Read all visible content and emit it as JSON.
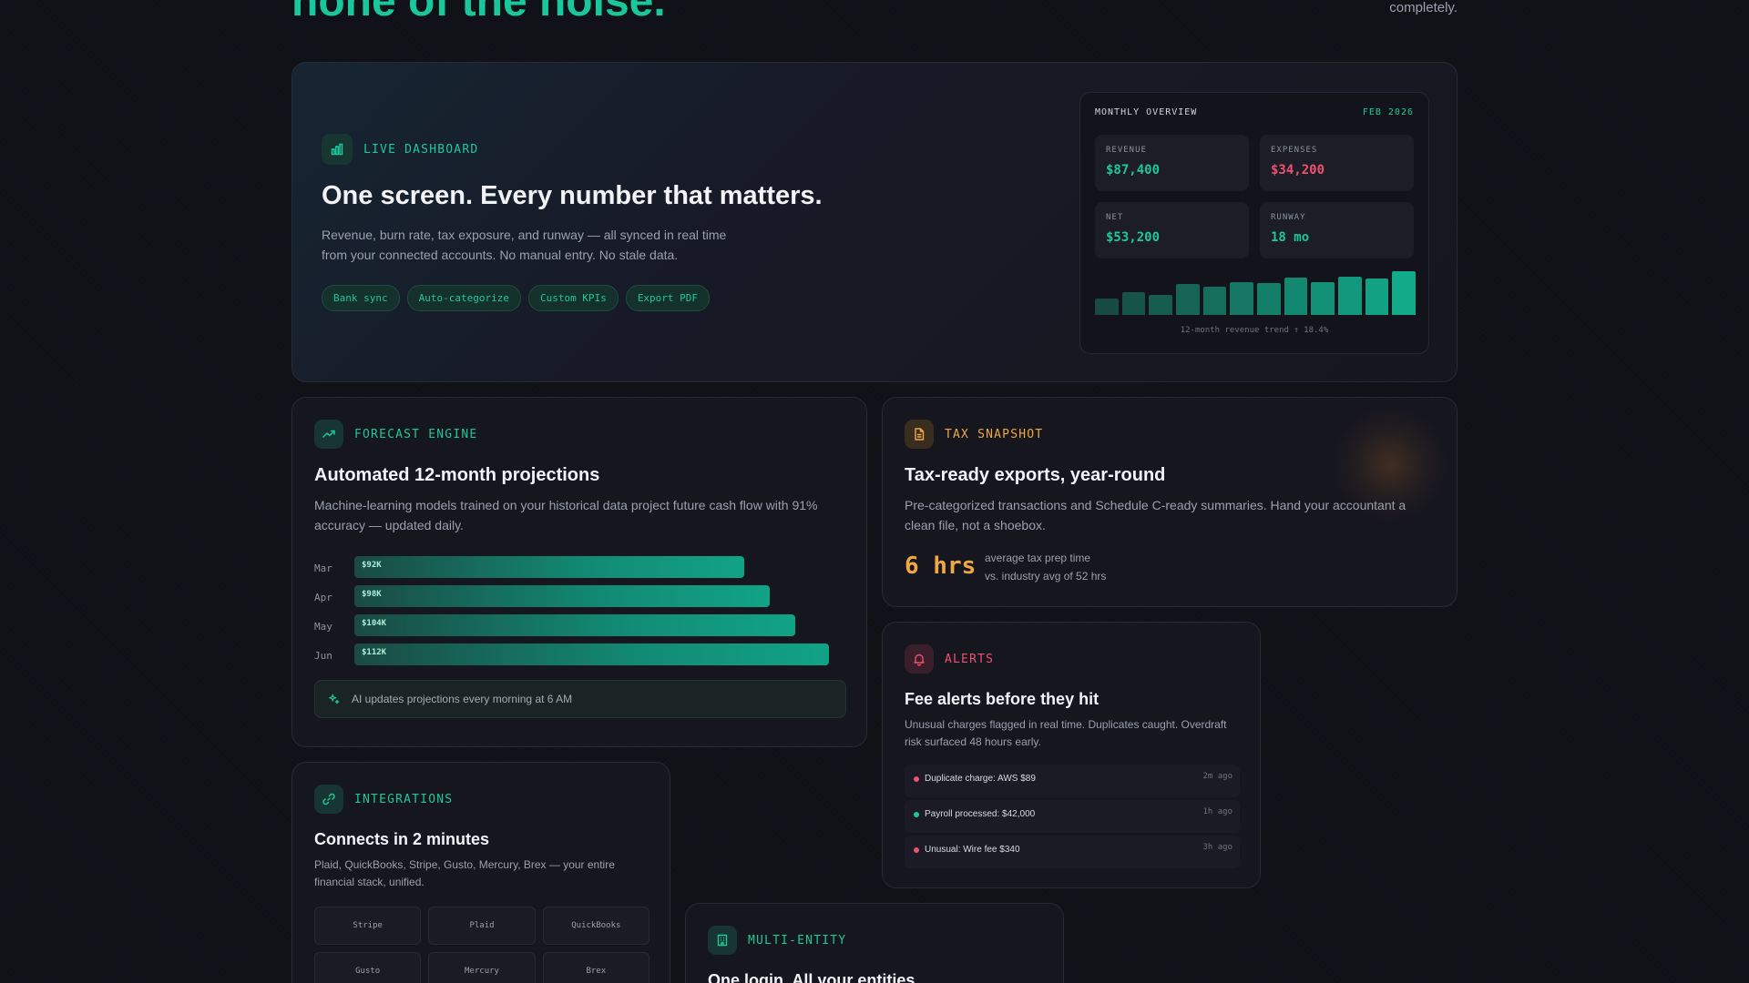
{
  "hero": {
    "title": "none of the noise.",
    "subtitle_tail": "completely."
  },
  "dashboard": {
    "tag": "LIVE DASHBOARD",
    "icon": "bar-chart-icon",
    "title": "One screen. Every number that matters.",
    "description": "Revenue, burn rate, tax exposure, and runway — all synced in real time from your connected accounts. No manual entry. No stale data.",
    "chips": [
      "Bank sync",
      "Auto-categorize",
      "Custom KPIs",
      "Export PDF"
    ],
    "overview": {
      "title": "MONTHLY OVERVIEW",
      "date": "FEB 2026",
      "metrics": [
        {
          "label": "REVENUE",
          "value": "$87,400",
          "color": "#1fc79c"
        },
        {
          "label": "EXPENSES",
          "value": "$34,200",
          "color": "#f0506e"
        },
        {
          "label": "NET",
          "value": "$53,200",
          "color": "#1fc79c"
        },
        {
          "label": "RUNWAY",
          "value": "18 mo",
          "color": "#1fc79c"
        }
      ],
      "trend_levels": [
        0.38,
        0.52,
        0.45,
        0.7,
        0.64,
        0.76,
        0.72,
        0.86,
        0.74,
        0.88,
        0.84,
        1.0
      ],
      "caption": "12-month revenue trend ↑ 18.4%"
    }
  },
  "forecast": {
    "tag": "FORECAST ENGINE",
    "icon": "trending-up-icon",
    "title": "Automated 12-month projections",
    "description": "Machine-learning models trained on your historical data project future cash flow with 91% accuracy — updated daily.",
    "projections": [
      {
        "month": "Mar",
        "label": "$92K",
        "value": 92
      },
      {
        "month": "Apr",
        "label": "$98K",
        "value": 98
      },
      {
        "month": "May",
        "label": "$104K",
        "value": 104
      },
      {
        "month": "Jun",
        "label": "$112K",
        "value": 112
      }
    ],
    "projection_scale_max": 116,
    "note": "AI updates projections every morning at 6 AM",
    "note_icon": "sparkles-icon"
  },
  "tax": {
    "tag": "TAX SNAPSHOT",
    "icon": "file-text-icon",
    "title": "Tax-ready exports, year-round",
    "description": "Pre-categorized transactions and Schedule C-ready summaries. Hand your accountant a clean file, not a shoebox.",
    "stat": "6 hrs",
    "stat_line1": "average tax prep time",
    "stat_line2": "vs. industry avg of 52 hrs"
  },
  "alerts": {
    "tag": "ALERTS",
    "icon": "bell-icon",
    "title": "Fee alerts before they hit",
    "description": "Unusual charges flagged in real time. Duplicates caught. Overdraft risk surfaced 48 hours early.",
    "items": [
      {
        "text": "Duplicate charge: AWS $89",
        "time": "2m ago",
        "color": "#f0506e"
      },
      {
        "text": "Payroll processed: $42,000",
        "time": "1h ago",
        "color": "#1fc79c"
      },
      {
        "text": "Unusual: Wire fee $340",
        "time": "3h ago",
        "color": "#f0506e"
      }
    ]
  },
  "integrations": {
    "tag": "INTEGRATIONS",
    "icon": "link-icon",
    "title": "Connects in 2 minutes",
    "description": "Plaid, QuickBooks, Stripe, Gusto, Mercury, Brex — your entire financial stack, unified.",
    "tiles": [
      "Stripe",
      "Plaid",
      "QuickBooks",
      "Gusto",
      "Mercury",
      "Brex"
    ]
  },
  "entity": {
    "tag": "MULTI-ENTITY",
    "icon": "building-icon",
    "title": "One login. All your entities."
  },
  "colors": {
    "accent": "#1fc79c",
    "danger": "#f0506e",
    "warning": "#f0a845"
  }
}
